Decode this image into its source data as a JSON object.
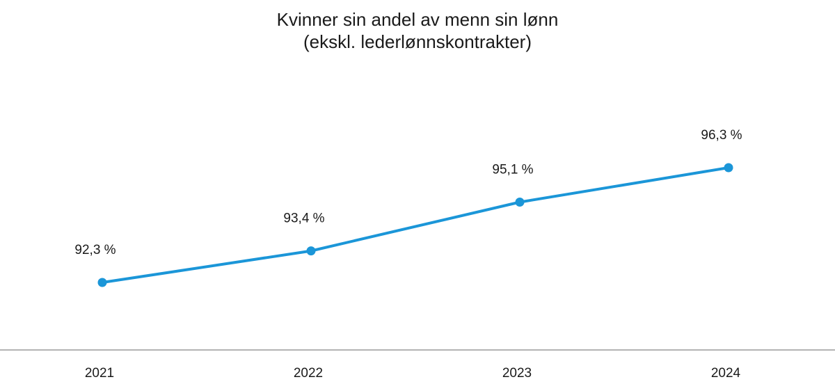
{
  "chart_data": {
    "type": "line",
    "title": "Kvinner sin andel av menn sin lønn",
    "subtitle": "(ekskl. lederlønnskontrakter)",
    "categories": [
      "2021",
      "2022",
      "2023",
      "2024"
    ],
    "series": [
      {
        "values": [
          92.3,
          93.4,
          95.1,
          96.3
        ],
        "labels": [
          "92,3 %",
          "93,4 %",
          "95,1 %",
          "96,3 %"
        ],
        "color": "#1b96d8"
      }
    ],
    "xlabel": "",
    "ylabel": "",
    "grid": false,
    "legend": "none"
  }
}
